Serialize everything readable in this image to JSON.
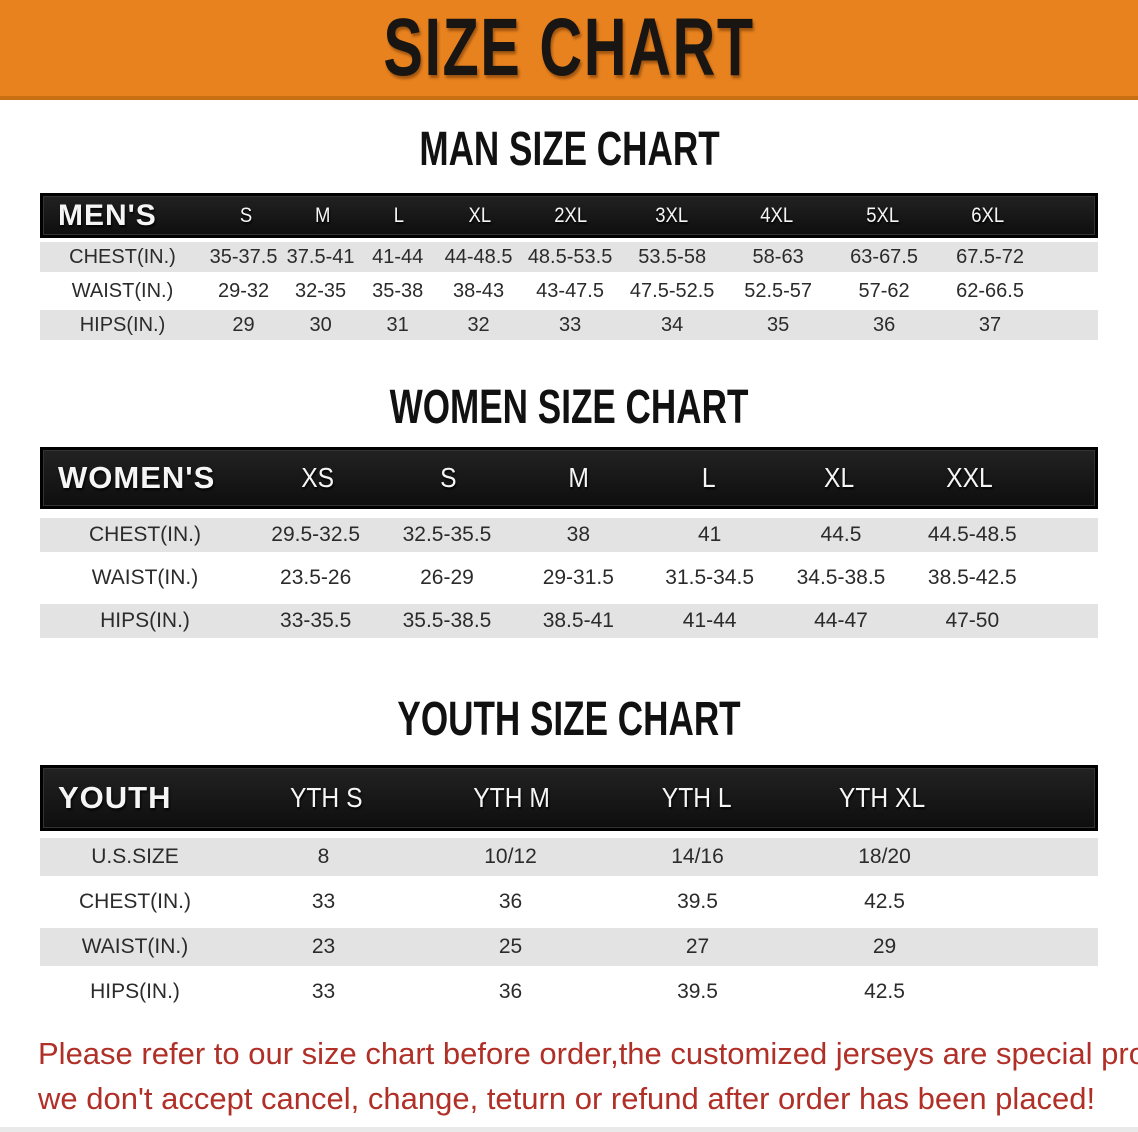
{
  "banner": {
    "title": "SIZE CHART",
    "bg_color": "#E8821E",
    "text_color": "#181512"
  },
  "sections": [
    {
      "id": "men",
      "heading": "MAN SIZE CHART",
      "table": {
        "group_label": "MEN'S",
        "sizes": [
          "S",
          "M",
          "L",
          "XL",
          "2XL",
          "3XL",
          "4XL",
          "5XL",
          "6XL"
        ],
        "rows": [
          {
            "label": "CHEST(IN.)",
            "values": [
              "35-37.5",
              "37.5-41",
              "41-44",
              "44-48.5",
              "48.5-53.5",
              "53.5-58",
              "58-63",
              "63-67.5",
              "67.5-72"
            ]
          },
          {
            "label": "WAIST(IN.)",
            "values": [
              "29-32",
              "32-35",
              "35-38",
              "38-43",
              "43-47.5",
              "47.5-52.5",
              "52.5-57",
              "57-62",
              "62-66.5"
            ]
          },
          {
            "label": "HIPS(IN.)",
            "values": [
              "29",
              "30",
              "31",
              "32",
              "33",
              "34",
              "35",
              "36",
              "37"
            ]
          }
        ]
      }
    },
    {
      "id": "women",
      "heading": "WOMEN SIZE CHART",
      "table": {
        "group_label": "WOMEN'S",
        "sizes": [
          "XS",
          "S",
          "M",
          "L",
          "XL",
          "XXL"
        ],
        "rows": [
          {
            "label": "CHEST(IN.)",
            "values": [
              "29.5-32.5",
              "32.5-35.5",
              "38",
              "41",
              "44.5",
              "44.5-48.5"
            ]
          },
          {
            "label": "WAIST(IN.)",
            "values": [
              "23.5-26",
              "26-29",
              "29-31.5",
              "31.5-34.5",
              "34.5-38.5",
              "38.5-42.5"
            ]
          },
          {
            "label": "HIPS(IN.)",
            "values": [
              "33-35.5",
              "35.5-38.5",
              "38.5-41",
              "41-44",
              "44-47",
              "47-50"
            ]
          }
        ]
      }
    },
    {
      "id": "youth",
      "heading": "YOUTH SIZE CHART",
      "table": {
        "group_label": "YOUTH",
        "sizes": [
          "YTH S",
          "YTH M",
          "YTH L",
          "YTH XL"
        ],
        "rows": [
          {
            "label": "U.S.SIZE",
            "values": [
              "8",
              "10/12",
              "14/16",
              "18/20"
            ]
          },
          {
            "label": "CHEST(IN.)",
            "values": [
              "33",
              "36",
              "39.5",
              "42.5"
            ]
          },
          {
            "label": "WAIST(IN.)",
            "values": [
              "23",
              "25",
              "27",
              "29"
            ]
          },
          {
            "label": "HIPS(IN.)",
            "values": [
              "33",
              "36",
              "39.5",
              "42.5"
            ]
          }
        ]
      }
    }
  ],
  "disclaimer": {
    "color": "#B03028",
    "lines": [
      "Please refer to our size chart before order,the customized jerseys are special products,",
      "we don't accept cancel, change, teturn or refund after order has been placed!"
    ]
  }
}
